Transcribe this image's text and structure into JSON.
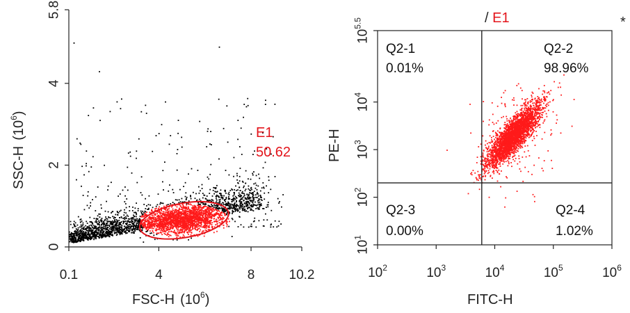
{
  "colors": {
    "gated": "#ff1a1a",
    "ungated": "#000000",
    "gate_outline": "#e3141b",
    "axis": "#222222"
  },
  "chart_data": [
    {
      "type": "scatter",
      "panel": "left",
      "xlabel": "FSC-H",
      "xlabel_unit_base": "(10",
      "xlabel_unit_exp": "6",
      "xlabel_unit_close": ")",
      "ylabel": "SSC-H",
      "ylabel_unit_base": "(10",
      "ylabel_unit_exp": "6",
      "ylabel_unit_close": ")",
      "xlim": [
        0.1,
        10.2
      ],
      "ylim": [
        0,
        5.8
      ],
      "xticks": [
        {
          "value": 0.1,
          "label": "0.1"
        },
        {
          "value": 4,
          "label": "4"
        },
        {
          "value": 8,
          "label": "8"
        },
        {
          "value": 10.2,
          "label": "10.2"
        }
      ],
      "yticks": [
        {
          "value": 0,
          "label": "0"
        },
        {
          "value": 2,
          "label": "2"
        },
        {
          "value": 4,
          "label": "4"
        },
        {
          "value": 5.8,
          "label": "5.8"
        }
      ],
      "gate": {
        "name": "E1",
        "percent": "50.62",
        "center": [
          5.1,
          0.65
        ],
        "rx": 1.95,
        "ry": 0.42
      },
      "sample_points": [
        [
          0.5,
          0.2
        ],
        [
          1.2,
          0.4
        ],
        [
          2.6,
          0.5
        ],
        [
          5.1,
          0.7
        ],
        [
          7.6,
          1.0
        ],
        [
          1.4,
          4.3
        ],
        [
          6.6,
          4.9
        ],
        [
          0.3,
          5.0
        ],
        [
          8.6,
          3.5
        ]
      ]
    },
    {
      "type": "scatter",
      "panel": "right",
      "title_prefix": "/ ",
      "title_gate": "E1",
      "corner_mark": "*",
      "xlabel": "FITC-H",
      "ylabel": "PE-H",
      "xscale": "log",
      "yscale": "log",
      "xlim": [
        100,
        1000000
      ],
      "ylim": [
        10,
        316228
      ],
      "xticks": [
        {
          "base": "10",
          "exp": "2"
        },
        {
          "base": "10",
          "exp": "3"
        },
        {
          "base": "10",
          "exp": "4"
        },
        {
          "base": "10",
          "exp": "5"
        },
        {
          "base": "10",
          "exp": "6"
        }
      ],
      "yticks": [
        {
          "base": "10",
          "exp": "1"
        },
        {
          "base": "10",
          "exp": "2"
        },
        {
          "base": "10",
          "exp": "3"
        },
        {
          "base": "10",
          "exp": "4"
        },
        {
          "base": "10",
          "exp": "5.5"
        }
      ],
      "quadrant_divider": {
        "x": 6000,
        "y": 200
      },
      "quadrants": [
        {
          "id": "Q2-1",
          "label": "Q2-1",
          "percent": "0.01%",
          "position": "top-left"
        },
        {
          "id": "Q2-2",
          "label": "Q2-2",
          "percent": "98.96%",
          "position": "top-right"
        },
        {
          "id": "Q2-3",
          "label": "Q2-3",
          "percent": "0.00%",
          "position": "bottom-left"
        },
        {
          "id": "Q2-4",
          "label": "Q2-4",
          "percent": "1.02%",
          "position": "bottom-right"
        }
      ],
      "population_center": [
        20000,
        2000
      ],
      "sample_points": [
        [
          20000,
          2000
        ],
        [
          40000,
          5000
        ],
        [
          12000,
          800
        ],
        [
          80000,
          10000
        ],
        [
          15000,
          100
        ],
        [
          1500,
          1000
        ]
      ]
    }
  ]
}
